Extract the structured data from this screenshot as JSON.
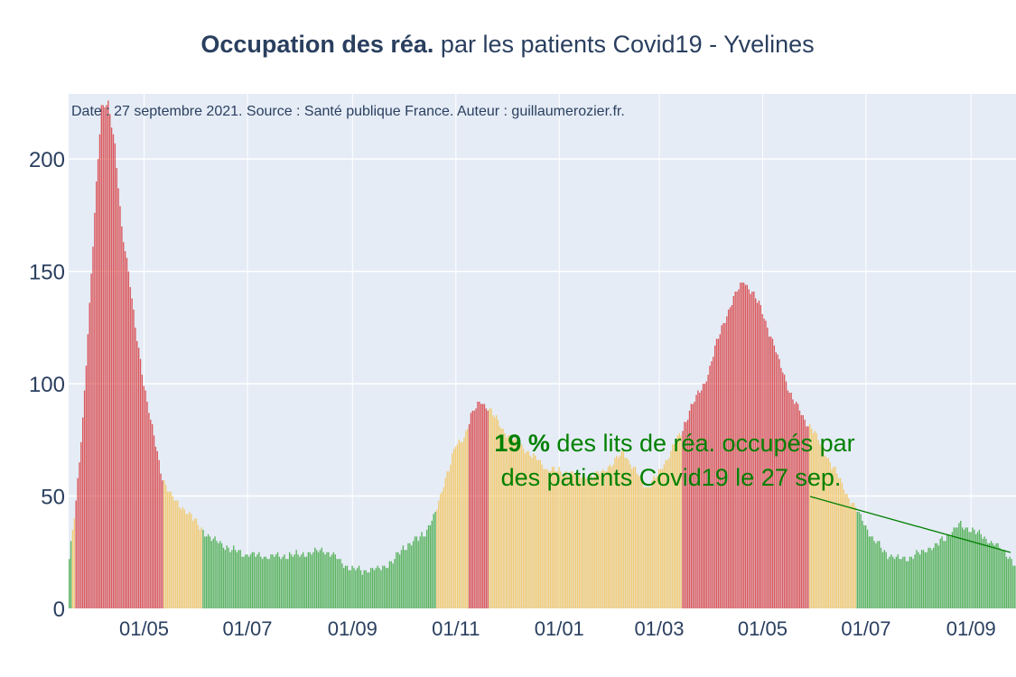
{
  "title": {
    "bold": "Occupation des réa.",
    "rest": " par les patients Covid19 - Yvelines"
  },
  "source_note": "Date : 27 septembre 2021. Source : Santé publique France. Auteur : guillaumerozier.fr.",
  "annotation": {
    "percent_value": "19  %",
    "line1_rest": " des lits de réa. occupés par",
    "line2": "des patients Covid19 le 27 sep.",
    "color": "#008000"
  },
  "colors": {
    "plot_bg": "#e5ecf6",
    "grid": "#ffffff",
    "text": "#2a3f5f",
    "red": "#d62728",
    "yellow": "#f5c04a",
    "green": "#2ca02c"
  },
  "chart_data": {
    "type": "bar",
    "x_start": "2020-03-18",
    "x_end": "2021-09-27",
    "xtick_labels": [
      {
        "date": "2020-05-01",
        "label": "01/05"
      },
      {
        "date": "2020-07-01",
        "label": "01/07"
      },
      {
        "date": "2020-09-01",
        "label": "01/09"
      },
      {
        "date": "2020-11-01",
        "label": "01/11"
      },
      {
        "date": "2021-01-01",
        "label": "01/01"
      },
      {
        "date": "2021-03-01",
        "label": "01/03"
      },
      {
        "date": "2021-05-01",
        "label": "01/05"
      },
      {
        "date": "2021-07-01",
        "label": "01/07"
      },
      {
        "date": "2021-09-01",
        "label": "01/09"
      }
    ],
    "ylim": [
      0,
      229
    ],
    "yticks": [
      0,
      50,
      100,
      150,
      200
    ],
    "grid": true,
    "anchors": [
      [
        "2020-03-18",
        22
      ],
      [
        "2020-03-22",
        47
      ],
      [
        "2020-03-26",
        85
      ],
      [
        "2020-03-30",
        135
      ],
      [
        "2020-04-03",
        188
      ],
      [
        "2020-04-06",
        224
      ],
      [
        "2020-04-10",
        225
      ],
      [
        "2020-04-14",
        205
      ],
      [
        "2020-04-18",
        170
      ],
      [
        "2020-04-22",
        150
      ],
      [
        "2020-04-26",
        125
      ],
      [
        "2020-04-30",
        105
      ],
      [
        "2020-05-04",
        88
      ],
      [
        "2020-05-08",
        72
      ],
      [
        "2020-05-12",
        58
      ],
      [
        "2020-05-16",
        52
      ],
      [
        "2020-05-20",
        47
      ],
      [
        "2020-05-26",
        44
      ],
      [
        "2020-06-01",
        38
      ],
      [
        "2020-06-08",
        32
      ],
      [
        "2020-06-15",
        29
      ],
      [
        "2020-06-22",
        26
      ],
      [
        "2020-07-01",
        24
      ],
      [
        "2020-07-15",
        23
      ],
      [
        "2020-08-01",
        24
      ],
      [
        "2020-08-15",
        26
      ],
      [
        "2020-08-22",
        23
      ],
      [
        "2020-09-01",
        17
      ],
      [
        "2020-09-15",
        17
      ],
      [
        "2020-09-25",
        21
      ],
      [
        "2020-10-01",
        27
      ],
      [
        "2020-10-10",
        31
      ],
      [
        "2020-10-15",
        35
      ],
      [
        "2020-10-20",
        42
      ],
      [
        "2020-10-26",
        58
      ],
      [
        "2020-11-01",
        72
      ],
      [
        "2020-11-06",
        76
      ],
      [
        "2020-11-10",
        86
      ],
      [
        "2020-11-16",
        92
      ],
      [
        "2020-11-22",
        88
      ],
      [
        "2020-11-28",
        80
      ],
      [
        "2020-12-10",
        72
      ],
      [
        "2020-12-25",
        62
      ],
      [
        "2021-01-10",
        60
      ],
      [
        "2021-01-20",
        58
      ],
      [
        "2021-02-01",
        64
      ],
      [
        "2021-02-08",
        70
      ],
      [
        "2021-02-14",
        62
      ],
      [
        "2021-02-22",
        54
      ],
      [
        "2021-03-01",
        60
      ],
      [
        "2021-03-08",
        70
      ],
      [
        "2021-03-14",
        78
      ],
      [
        "2021-03-20",
        90
      ],
      [
        "2021-03-28",
        100
      ],
      [
        "2021-04-04",
        118
      ],
      [
        "2021-04-12",
        135
      ],
      [
        "2021-04-20",
        146
      ],
      [
        "2021-04-26",
        140
      ],
      [
        "2021-05-02",
        130
      ],
      [
        "2021-05-10",
        112
      ],
      [
        "2021-05-18",
        95
      ],
      [
        "2021-05-25",
        85
      ],
      [
        "2021-06-01",
        78
      ],
      [
        "2021-06-08",
        68
      ],
      [
        "2021-06-15",
        58
      ],
      [
        "2021-06-22",
        48
      ],
      [
        "2021-06-30",
        38
      ],
      [
        "2021-07-06",
        30
      ],
      [
        "2021-07-14",
        24
      ],
      [
        "2021-07-20",
        22
      ],
      [
        "2021-07-28",
        23
      ],
      [
        "2021-08-05",
        26
      ],
      [
        "2021-08-12",
        28
      ],
      [
        "2021-08-20",
        34
      ],
      [
        "2021-08-26",
        37
      ],
      [
        "2021-09-02",
        35
      ],
      [
        "2021-09-10",
        31
      ],
      [
        "2021-09-18",
        27
      ],
      [
        "2021-09-24",
        23
      ],
      [
        "2021-09-27",
        19
      ]
    ],
    "color_periods": [
      {
        "from": "2020-03-18",
        "to": "2020-03-19",
        "color": "green"
      },
      {
        "from": "2020-03-20",
        "to": "2020-03-21",
        "color": "yellow"
      },
      {
        "from": "2020-03-22",
        "to": "2020-05-12",
        "color": "red"
      },
      {
        "from": "2020-05-13",
        "to": "2020-06-04",
        "color": "yellow"
      },
      {
        "from": "2020-06-05",
        "to": "2020-10-20",
        "color": "green"
      },
      {
        "from": "2020-10-21",
        "to": "2020-11-08",
        "color": "yellow"
      },
      {
        "from": "2020-11-09",
        "to": "2020-11-20",
        "color": "red"
      },
      {
        "from": "2020-11-21",
        "to": "2021-03-14",
        "color": "yellow"
      },
      {
        "from": "2021-03-15",
        "to": "2021-05-28",
        "color": "red"
      },
      {
        "from": "2021-05-29",
        "to": "2021-06-25",
        "color": "yellow"
      },
      {
        "from": "2021-06-26",
        "to": "2021-09-27",
        "color": "green"
      }
    ]
  }
}
